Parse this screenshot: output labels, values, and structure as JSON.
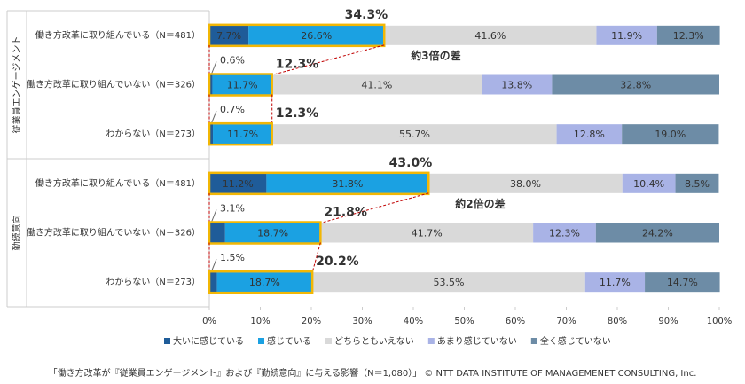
{
  "chart_data": {
    "type": "stacked-bar-horizontal",
    "groups": [
      "従業員エンゲージメント",
      "勤続意向"
    ],
    "categories": [
      "働き方改革に取り組んでいる（N＝481）",
      "働き方改革に取り組んでいない（N＝326）",
      "わからない（N＝273）",
      "働き方改革に取り組んでいる（N＝481）",
      "働き方改革に取り組んでいない（N＝326）",
      "わからない（N＝273）"
    ],
    "series": [
      {
        "name": "大いに感じている",
        "color": "#1f5c99",
        "values": [
          7.7,
          0.6,
          0.7,
          11.2,
          3.1,
          1.5
        ],
        "value_labels": [
          "7.7%",
          "0.6%",
          "0.7%",
          "11.2%",
          "3.1%",
          "1.5%"
        ]
      },
      {
        "name": "感じている",
        "color": "#1ba1e2",
        "values": [
          26.6,
          11.7,
          11.7,
          31.8,
          18.7,
          18.7
        ],
        "value_labels": [
          "26.6%",
          "11.7%",
          "11.7%",
          "31.8%",
          "18.7%",
          "18.7%"
        ]
      },
      {
        "name": "どちらともいえない",
        "color": "#d9d9d9",
        "values": [
          41.6,
          41.1,
          55.7,
          38.0,
          41.7,
          53.5
        ],
        "value_labels": [
          "41.6%",
          "41.1%",
          "55.7%",
          "38.0%",
          "41.7%",
          "53.5%"
        ]
      },
      {
        "name": "あまり感じていない",
        "color": "#a9b3e6",
        "values": [
          11.9,
          13.8,
          12.8,
          10.4,
          12.3,
          11.7
        ],
        "value_labels": [
          "11.9%",
          "13.8%",
          "12.8%",
          "10.4%",
          "12.3%",
          "11.7%"
        ]
      },
      {
        "name": "全く感じていない",
        "color": "#6d8ca6",
        "values": [
          12.3,
          32.8,
          19.0,
          8.5,
          24.2,
          14.7
        ],
        "value_labels": [
          "12.3%",
          "32.8%",
          "19.0%",
          "8.5%",
          "24.2%",
          "14.7%"
        ]
      }
    ],
    "totals": {
      "values": [
        34.3,
        12.3,
        12.3,
        43.0,
        21.8,
        20.2
      ],
      "value_labels": [
        "34.3%",
        "12.3%",
        "12.3%",
        "43.0%",
        "21.8%",
        "20.2%"
      ],
      "color": "#f2b705"
    },
    "annotations": [
      "約3倍の差",
      "約2倍の差"
    ],
    "xlim": [
      0,
      100
    ],
    "xticks": [
      {
        "value": 0,
        "label": "0%"
      },
      {
        "value": 10,
        "label": "10%"
      },
      {
        "value": 20,
        "label": "20%"
      },
      {
        "value": 30,
        "label": "30%"
      },
      {
        "value": 40,
        "label": "40%"
      },
      {
        "value": 50,
        "label": "50%"
      },
      {
        "value": 60,
        "label": "60%"
      },
      {
        "value": 70,
        "label": "70%"
      },
      {
        "value": 80,
        "label": "80%"
      },
      {
        "value": 90,
        "label": "90%"
      },
      {
        "value": 100,
        "label": "100%"
      }
    ],
    "caption": "「働き方改革が『従業員エンゲージメント』および『勤続意向』に与える影響（N＝1,080）」 © NTT DATA INSTITUTE OF MANAGEMENET CONSULTING, Inc."
  }
}
